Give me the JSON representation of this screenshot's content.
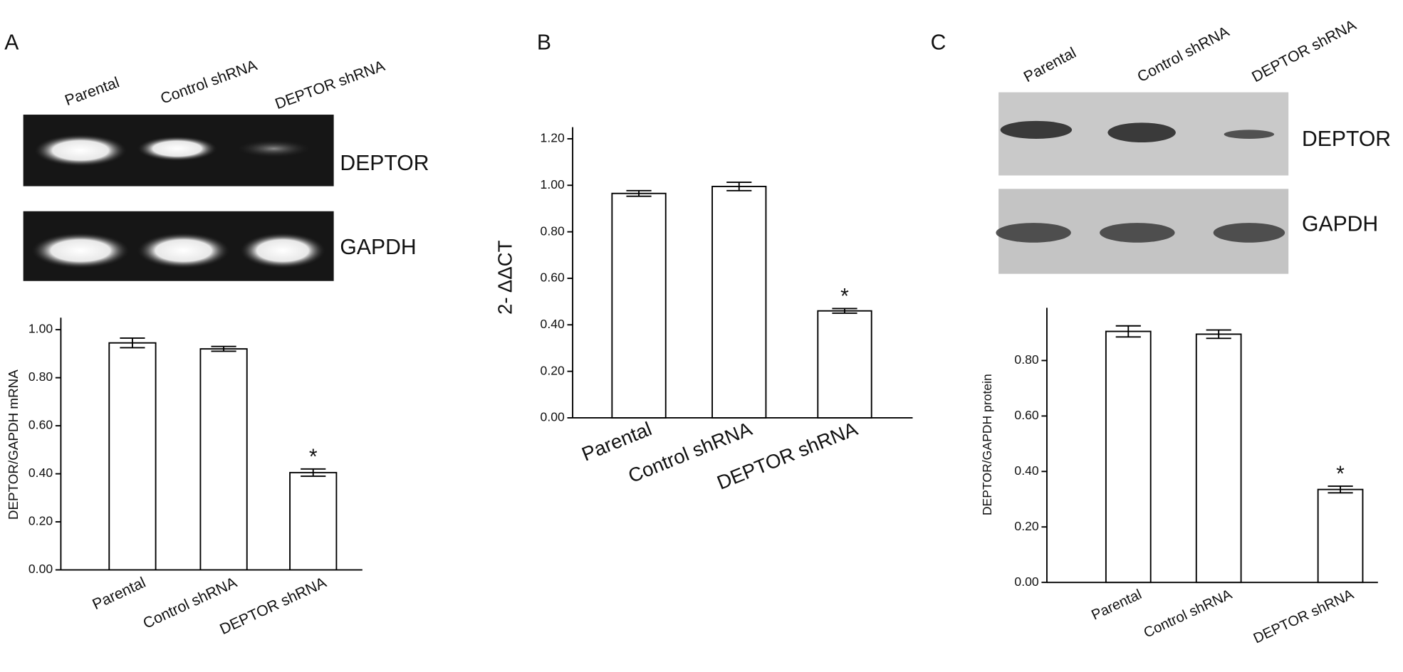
{
  "chart_data": [
    {
      "type": "bar",
      "panel": "A",
      "ylabel": "DEPTOR/GAPDH mRNA",
      "blots": [
        "DEPTOR",
        "GAPDH"
      ],
      "categories": [
        "Parental",
        "Control shRNA",
        "DEPTOR shRNA"
      ],
      "values": [
        0.945,
        0.92,
        0.405
      ],
      "errors": [
        0.02,
        0.01,
        0.015
      ],
      "color": "#ffffff",
      "annotation": "*",
      "ylim": [
        0,
        1.05
      ],
      "yticks": [
        {
          "value": 0,
          "label": "0.00"
        },
        {
          "value": 0.2,
          "label": "0.20"
        },
        {
          "value": 0.4,
          "label": "0.40"
        },
        {
          "value": 0.6,
          "label": "0.60"
        },
        {
          "value": 0.8,
          "label": "0.80"
        },
        {
          "value": 1.0,
          "label": "1.00"
        }
      ]
    },
    {
      "type": "bar",
      "panel": "B",
      "ylabel": "2- ΔΔCT",
      "categories": [
        "Parental",
        "Control shRNA",
        "DEPTOR shRNA"
      ],
      "values": [
        0.965,
        0.995,
        0.46
      ],
      "errors": [
        0.012,
        0.018,
        0.01
      ],
      "color": "#ffffff",
      "annotation": "*",
      "ylim": [
        0,
        1.25
      ],
      "yticks": [
        {
          "value": 0,
          "label": "0.00"
        },
        {
          "value": 0.2,
          "label": "0.20"
        },
        {
          "value": 0.4,
          "label": "0.40"
        },
        {
          "value": 0.6,
          "label": "0.60"
        },
        {
          "value": 0.8,
          "label": "0.80"
        },
        {
          "value": 1.0,
          "label": "1.00"
        },
        {
          "value": 1.2,
          "label": "1.20"
        }
      ]
    },
    {
      "type": "bar",
      "panel": "C",
      "ylabel": "DEPTOR/GAPDH protein",
      "blots": [
        "DEPTOR",
        "GAPDH"
      ],
      "categories": [
        "Parental",
        "Control shRNA",
        "DEPTOR shRNA"
      ],
      "values": [
        0.905,
        0.895,
        0.335
      ],
      "errors": [
        0.02,
        0.015,
        0.012
      ],
      "color": "#ffffff",
      "annotation": "*",
      "ylim": [
        0,
        0.99
      ],
      "yticks": [
        {
          "value": 0,
          "label": "0.00"
        },
        {
          "value": 0.2,
          "label": "0.20"
        },
        {
          "value": 0.4,
          "label": "0.40"
        },
        {
          "value": 0.6,
          "label": "0.60"
        },
        {
          "value": 0.8,
          "label": "0.80"
        }
      ]
    }
  ]
}
